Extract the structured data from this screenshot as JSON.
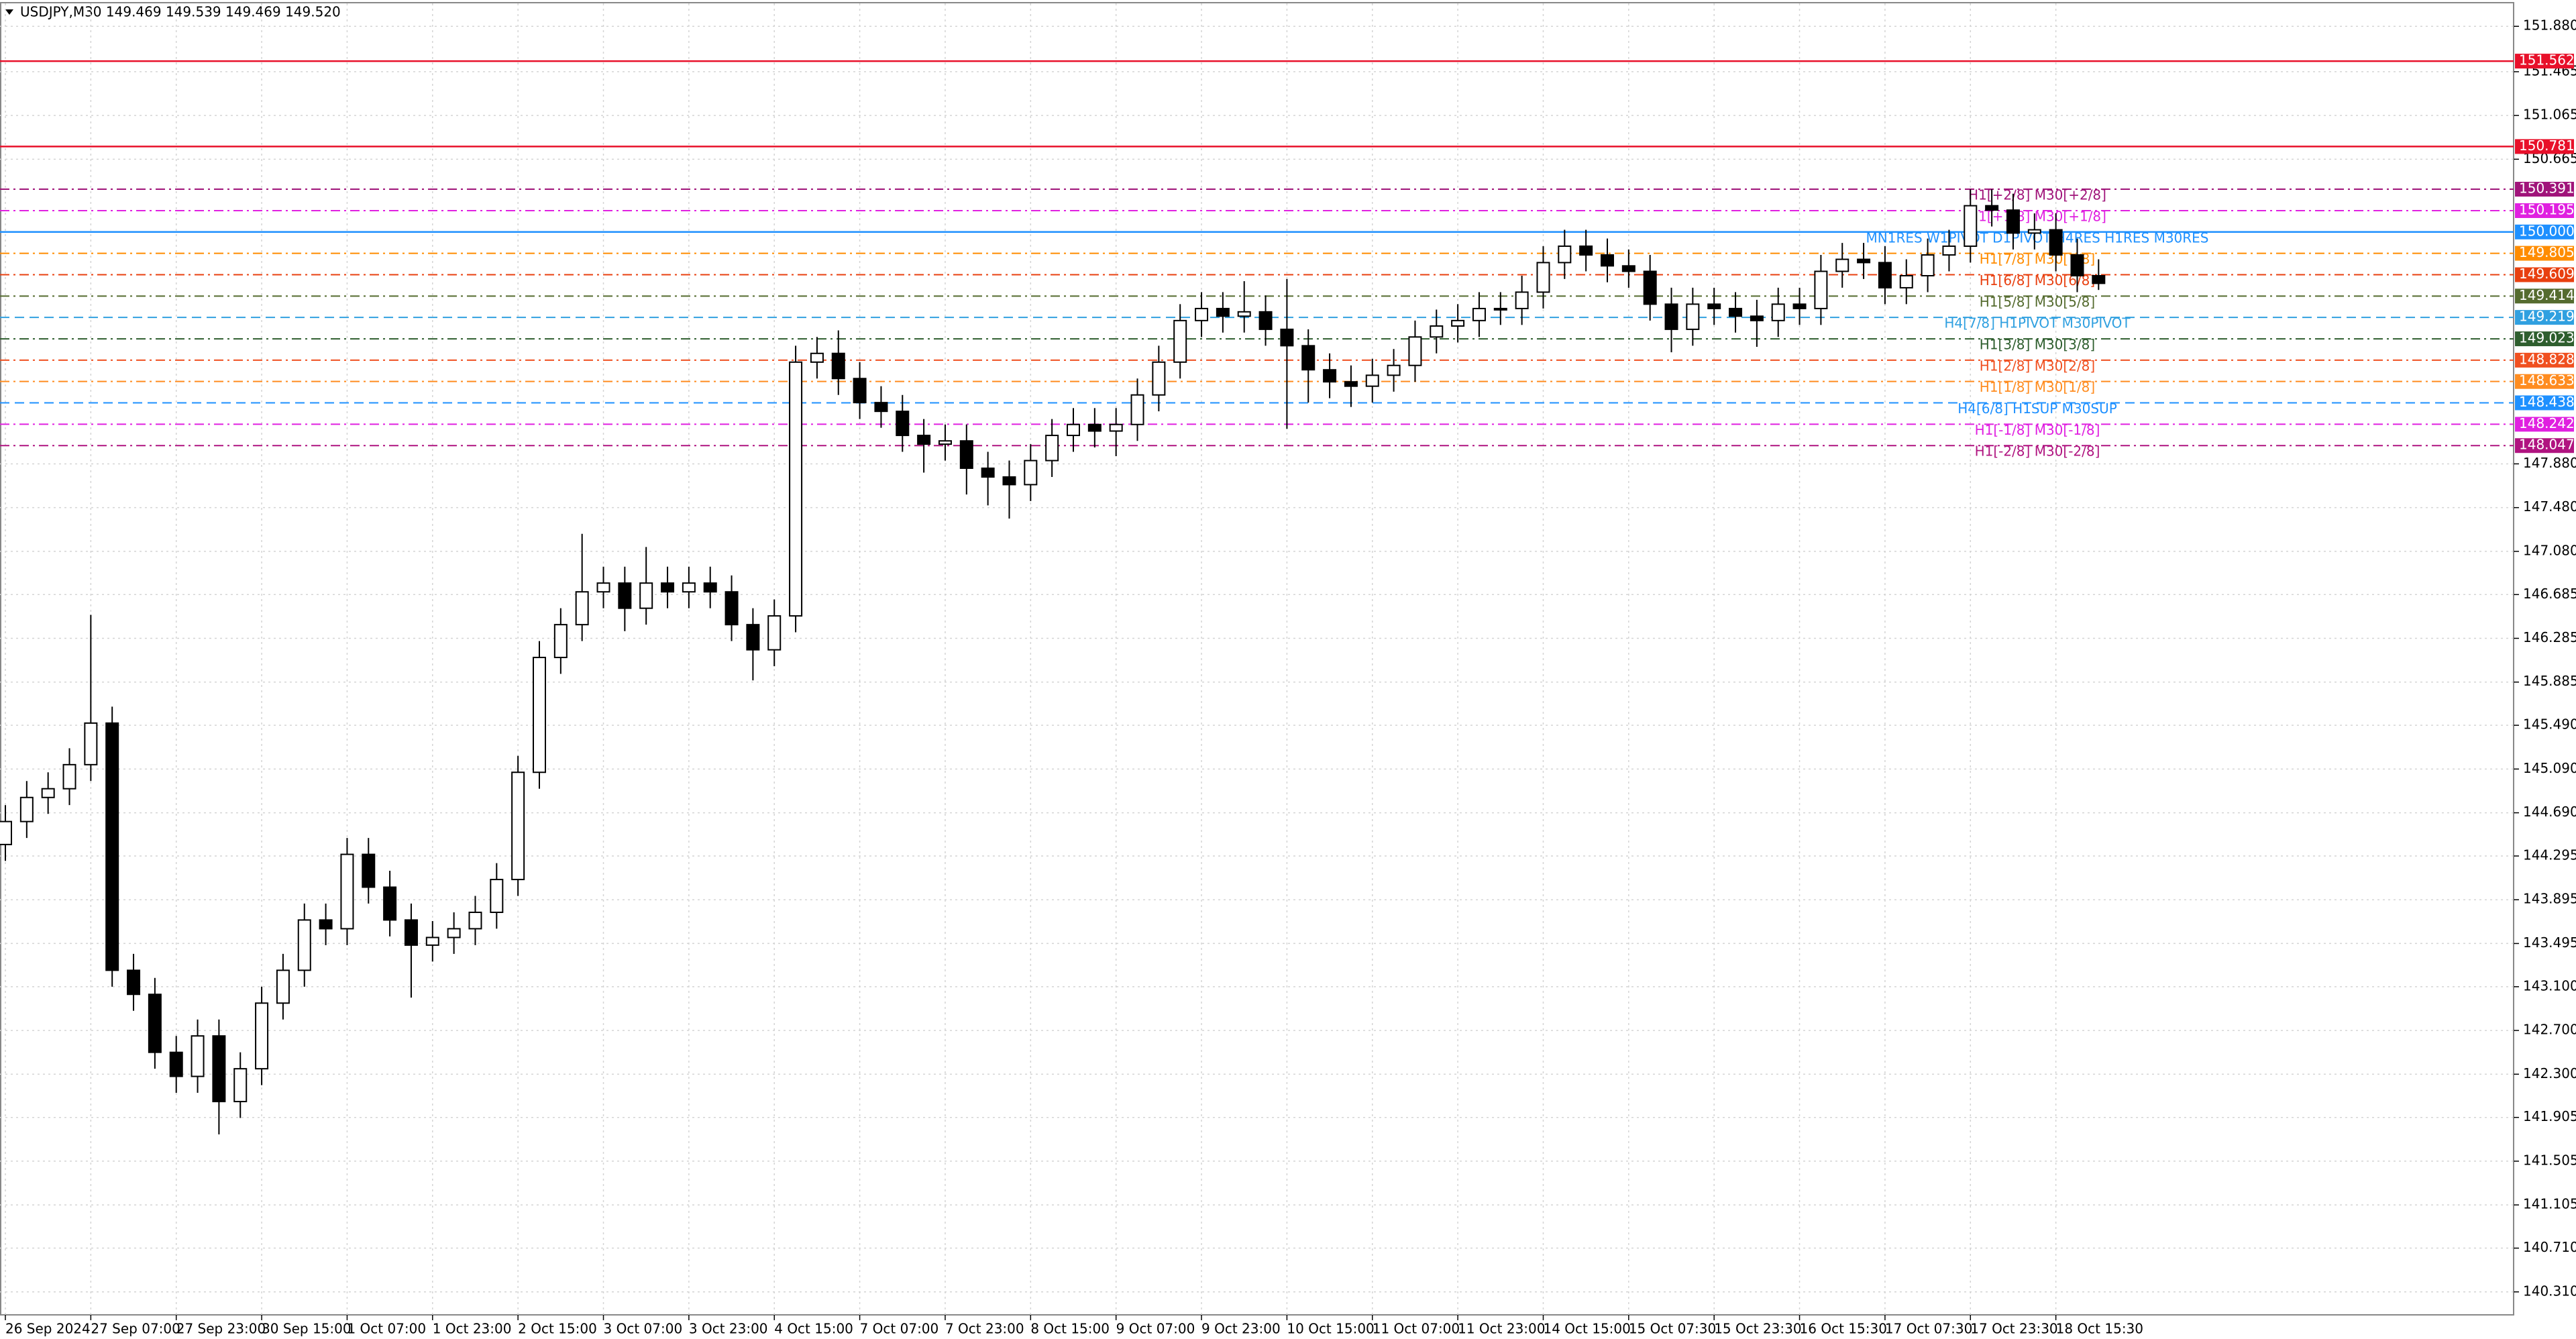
{
  "chart_data": {
    "type": "candlestick",
    "title": "USDJPY,M30  149.469 149.539 149.469 149.520",
    "categories": [
      "26 Sep 2024",
      null,
      null,
      null,
      "27 Sep 07:00",
      null,
      null,
      null,
      "27 Sep 23:00",
      null,
      null,
      null,
      "30 Sep 15:00",
      null,
      null,
      null,
      "1 Oct 07:00",
      null,
      null,
      null,
      "1 Oct 23:00",
      null,
      null,
      null,
      "2 Oct 15:00",
      null,
      null,
      null,
      "3 Oct 07:00",
      null,
      null,
      null,
      "3 Oct 23:00",
      null,
      null,
      null,
      "4 Oct 15:00",
      null,
      null,
      null,
      "7 Oct 07:00",
      null,
      null,
      null,
      "7 Oct 23:00",
      null,
      null,
      null,
      "8 Oct 15:00",
      null,
      null,
      null,
      "9 Oct 07:00",
      null,
      null,
      null,
      "9 Oct 23:00",
      null,
      null,
      null,
      "10 Oct 15:00",
      null,
      null,
      null,
      "11 Oct 07:00",
      null,
      null,
      null,
      "11 Oct 23:00",
      null,
      null,
      null,
      "14 Oct 15:00",
      null,
      null,
      null,
      "15 Oct 07:30",
      null,
      null,
      null,
      "15 Oct 23:30",
      null,
      null,
      null,
      "16 Oct 15:30",
      null,
      null,
      null,
      "17 Oct 07:30",
      null,
      null,
      null,
      "17 Oct 23:30",
      null,
      null,
      null,
      "18 Oct 15:30",
      null,
      null
    ],
    "open": [
      144.4,
      144.61,
      144.83,
      144.91,
      145.13,
      145.51,
      143.25,
      143.03,
      142.5,
      142.28,
      142.65,
      142.05,
      142.35,
      142.95,
      143.25,
      143.71,
      143.63,
      144.31,
      144.01,
      143.71,
      143.48,
      143.55,
      143.63,
      143.78,
      144.08,
      145.06,
      146.11,
      146.41,
      146.71,
      146.79,
      146.56,
      146.79,
      146.71,
      146.79,
      146.71,
      146.41,
      146.18,
      146.49,
      148.81,
      148.89,
      148.66,
      148.44,
      148.36,
      148.14,
      148.06,
      148.09,
      147.84,
      147.76,
      147.69,
      147.91,
      148.14,
      148.24,
      148.18,
      148.24,
      148.51,
      148.81,
      149.19,
      149.3,
      149.23,
      149.27,
      149.11,
      148.96,
      148.74,
      148.63,
      148.59,
      148.69,
      148.78,
      149.04,
      149.14,
      149.19,
      149.3,
      149.3,
      149.45,
      149.72,
      149.87,
      149.79,
      149.69,
      149.64,
      149.34,
      149.11,
      149.34,
      149.3,
      149.23,
      149.19,
      149.34,
      149.3,
      149.64,
      149.75,
      149.72,
      149.49,
      149.6,
      149.79,
      149.87,
      150.24,
      150.2,
      149.99,
      150.02,
      149.79,
      149.6
    ],
    "high": [
      144.76,
      144.98,
      145.06,
      145.28,
      146.5,
      145.66,
      143.4,
      143.18,
      142.65,
      142.8,
      142.8,
      142.5,
      143.1,
      143.4,
      143.86,
      143.86,
      144.46,
      144.46,
      144.16,
      143.86,
      143.7,
      143.78,
      143.93,
      144.23,
      145.21,
      146.26,
      146.56,
      147.24,
      146.94,
      146.94,
      147.12,
      146.94,
      146.94,
      146.94,
      146.86,
      146.56,
      146.64,
      148.96,
      149.04,
      149.1,
      148.81,
      148.59,
      148.51,
      148.29,
      148.24,
      148.24,
      147.99,
      147.91,
      148.06,
      148.29,
      148.39,
      148.39,
      148.39,
      148.66,
      148.96,
      149.34,
      149.45,
      149.45,
      149.55,
      149.42,
      149.57,
      149.11,
      148.89,
      148.78,
      148.84,
      148.93,
      149.19,
      149.29,
      149.34,
      149.45,
      149.45,
      149.6,
      149.87,
      150.02,
      150.02,
      149.94,
      149.84,
      149.79,
      149.49,
      149.49,
      149.49,
      149.45,
      149.38,
      149.49,
      149.49,
      149.79,
      149.9,
      149.9,
      149.87,
      149.75,
      149.94,
      150.02,
      150.39,
      150.39,
      150.35,
      150.17,
      150.17,
      149.94,
      149.75
    ],
    "low": [
      144.25,
      144.46,
      144.68,
      144.76,
      144.98,
      143.1,
      142.88,
      142.35,
      142.13,
      142.13,
      141.75,
      141.9,
      142.2,
      142.8,
      143.1,
      143.48,
      143.48,
      143.86,
      143.56,
      143.0,
      143.33,
      143.4,
      143.48,
      143.63,
      143.93,
      144.91,
      145.96,
      146.26,
      146.56,
      146.35,
      146.41,
      146.56,
      146.56,
      146.56,
      146.26,
      145.9,
      146.03,
      146.34,
      148.66,
      148.51,
      148.29,
      148.21,
      147.99,
      147.8,
      147.91,
      147.6,
      147.5,
      147.38,
      147.54,
      147.76,
      147.99,
      148.03,
      147.95,
      148.09,
      148.36,
      148.66,
      149.04,
      149.08,
      149.08,
      148.96,
      148.2,
      148.44,
      148.48,
      148.4,
      148.44,
      148.54,
      148.63,
      148.89,
      148.99,
      149.04,
      149.15,
      149.15,
      149.3,
      149.57,
      149.64,
      149.54,
      149.49,
      149.19,
      148.9,
      148.96,
      149.15,
      149.08,
      148.95,
      149.04,
      149.15,
      149.15,
      149.49,
      149.57,
      149.34,
      149.34,
      149.45,
      149.64,
      149.72,
      150.05,
      149.84,
      149.84,
      149.64,
      149.45,
      149.47
    ],
    "close": [
      144.61,
      144.83,
      144.91,
      145.13,
      145.51,
      143.25,
      143.03,
      142.5,
      142.28,
      142.65,
      142.05,
      142.35,
      142.95,
      143.25,
      143.71,
      143.63,
      144.31,
      144.01,
      143.71,
      143.48,
      143.55,
      143.63,
      143.78,
      144.08,
      145.06,
      146.11,
      146.41,
      146.71,
      146.79,
      146.56,
      146.79,
      146.71,
      146.79,
      146.71,
      146.41,
      146.18,
      146.49,
      148.81,
      148.89,
      148.66,
      148.44,
      148.36,
      148.14,
      148.06,
      148.09,
      147.84,
      147.76,
      147.69,
      147.91,
      148.14,
      148.24,
      148.18,
      148.24,
      148.51,
      148.81,
      149.19,
      149.3,
      149.23,
      149.27,
      149.11,
      148.96,
      148.74,
      148.63,
      148.59,
      148.69,
      148.78,
      149.04,
      149.14,
      149.19,
      149.3,
      149.3,
      149.45,
      149.72,
      149.87,
      149.79,
      149.69,
      149.64,
      149.34,
      149.11,
      149.34,
      149.3,
      149.23,
      149.19,
      149.34,
      149.3,
      149.64,
      149.75,
      149.72,
      149.49,
      149.6,
      149.79,
      149.87,
      150.24,
      150.2,
      149.99,
      150.02,
      149.79,
      149.6,
      149.53
    ],
    "ylim": [
      140.1,
      152.09
    ],
    "yticks": [
      {
        "value": 151.88,
        "label": "151.880"
      },
      151.465,
      151.065,
      150.665,
      {
        "value": 147.88,
        "label": "147.880"
      },
      {
        "value": 147.48,
        "label": "147.480"
      },
      {
        "value": 147.08,
        "label": "147.080"
      },
      146.685,
      146.285,
      145.885,
      {
        "value": 145.49,
        "label": "145.490"
      },
      {
        "value": 145.09,
        "label": "145.090"
      },
      {
        "value": 144.69,
        "label": "144.690"
      },
      144.295,
      143.895,
      143.495,
      {
        "value": 143.1,
        "label": "143.100"
      },
      {
        "value": 142.7,
        "label": "142.700"
      },
      {
        "value": 142.3,
        "label": "142.300"
      },
      141.905,
      141.505,
      141.105,
      {
        "value": 140.71,
        "label": "140.710"
      },
      {
        "value": 140.31,
        "label": "140.310"
      }
    ],
    "grid": true,
    "candle_color": "#000000",
    "levels": {
      "values": [
        151.562,
        150.781,
        150.391,
        150.195,
        150.0,
        149.805,
        149.609,
        149.414,
        149.219,
        149.023,
        148.828,
        148.633,
        148.438,
        148.242,
        148.047
      ],
      "value_labels": [
        "151.562",
        "150.781",
        "150.391",
        "150.195",
        "150.000",
        "149.805",
        "149.609",
        "149.414",
        "149.219",
        "149.023",
        "148.828",
        "148.633",
        "148.438",
        "148.242",
        "148.047"
      ],
      "names": [
        null,
        null,
        "H1[+2/8] M30[+2/8]",
        "H1[+1/8] M30[+1/8]",
        "MN1RES W1PIVOT D1PIVOT H4RES H1RES M30RES",
        "H1[7/8] M30[7/8]",
        "H1[6/8] M30[6/8]",
        "H1[5/8] M30[5/8]",
        "H4[7/8] H1PIVOT M30PIVOT",
        "H1[3/8] M30[3/8]",
        "H1[2/8] M30[2/8]",
        "H1[1/8] M30[1/8]",
        "H4[6/8] H1SUP M30SUP",
        "H1[-1/8] M30[-1/8]",
        "H1[-2/8] M30[-2/8]"
      ],
      "colors": [
        "#e8102a",
        "#e8102a",
        "#a0147a",
        "#e020e0",
        "#1e90ff",
        "#ff8c00",
        "#e84010",
        "#556b2f",
        "#30a0e0",
        "#2e5e2e",
        "#f05020",
        "#ff8c20",
        "#1e90ff",
        "#e020e0",
        "#b01480"
      ],
      "styles": [
        "solid",
        "solid",
        "dashdot",
        "dashdot",
        "solid",
        "dashdot",
        "dashdot",
        "dashdot",
        "dashed",
        "dashdot",
        "dashdot",
        "dashdot",
        "dashed",
        "dashdot",
        "dashdot"
      ]
    }
  }
}
